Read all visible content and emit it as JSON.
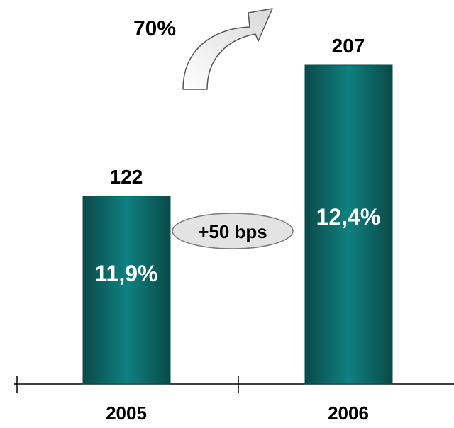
{
  "chart_data": {
    "type": "bar",
    "categories": [
      "2005",
      "2006"
    ],
    "values": [
      122,
      207
    ],
    "value_labels": [
      "122",
      "207"
    ],
    "inner_labels": [
      "11,9%",
      "12,4%"
    ],
    "growth_label": "70%",
    "margin_change_label": "+50 bps",
    "ylim": [
      0,
      230
    ],
    "title": "",
    "xlabel": "",
    "ylabel": "",
    "grid": false,
    "colors": {
      "bar_dark": "#0a4a4a",
      "bar_mid": "#0f8080",
      "bar_light": "#16a09a",
      "badge_fill": "#e3e3e3",
      "badge_stroke": "#777777"
    }
  }
}
